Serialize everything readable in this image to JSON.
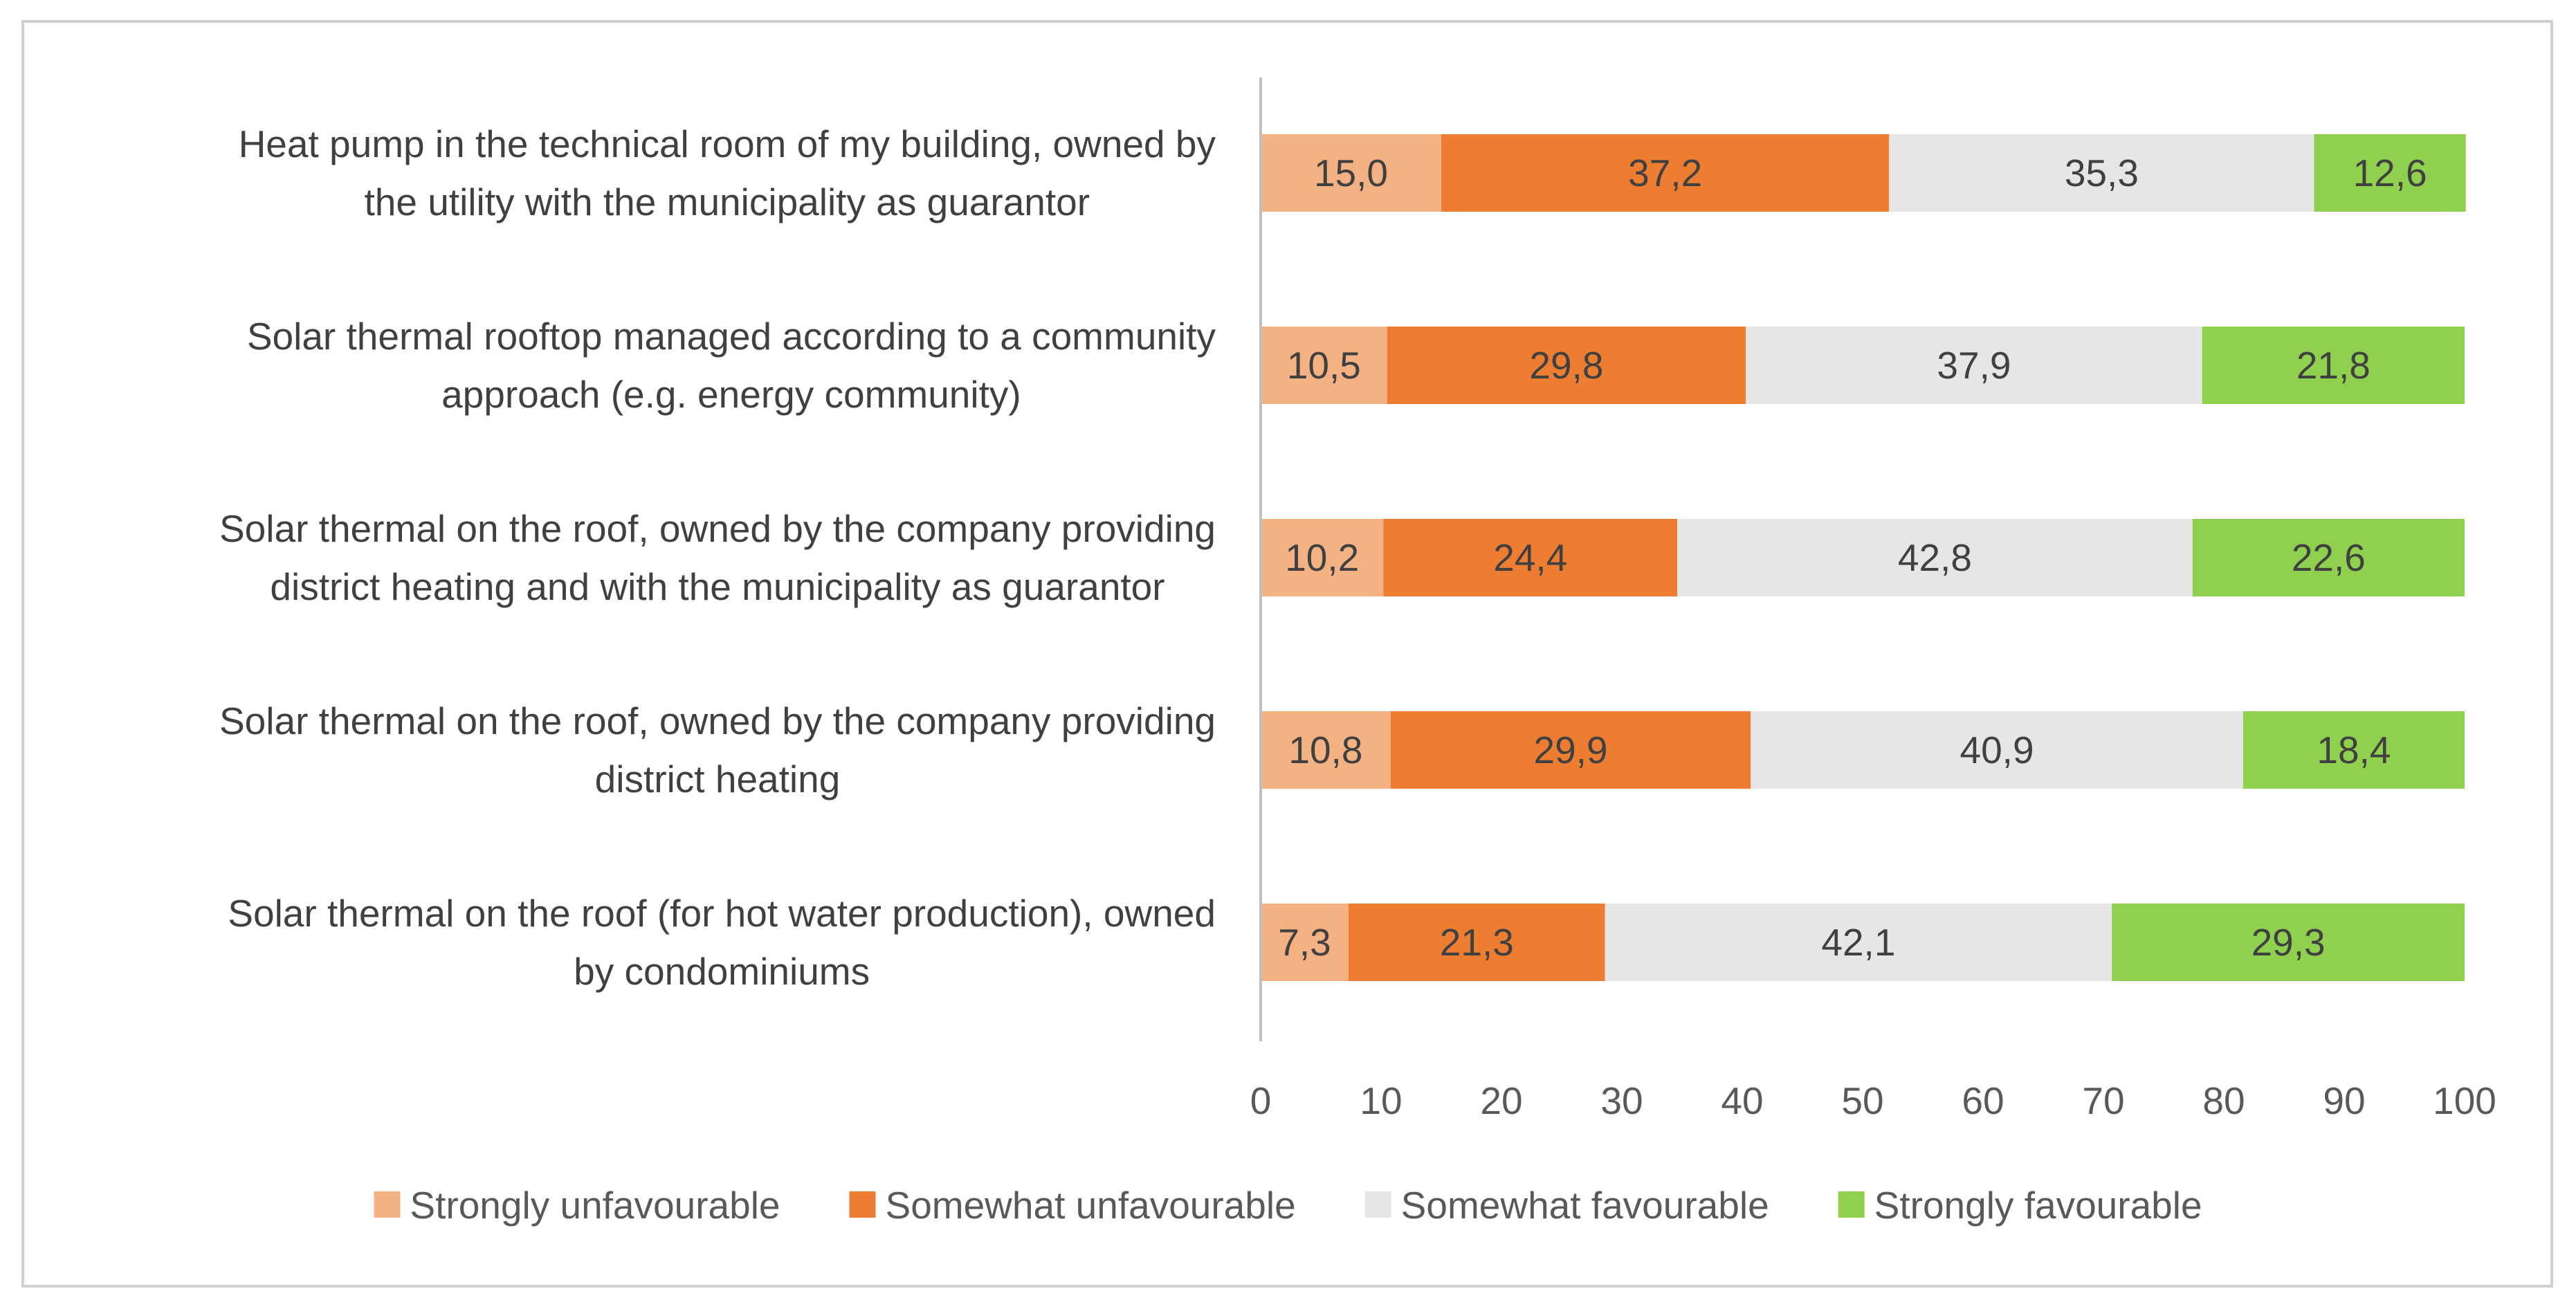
{
  "chart_data": {
    "type": "bar",
    "orientation": "horizontal",
    "stacked": true,
    "title": "",
    "xlabel": "",
    "ylabel": "",
    "xlim": [
      0,
      100
    ],
    "xticks": [
      "0",
      "10",
      "20",
      "30",
      "40",
      "50",
      "60",
      "70",
      "80",
      "90",
      "100"
    ],
    "grid": false,
    "legend_position": "bottom",
    "categories": [
      [
        "Heat pump in the technical room of my building, owned by",
        "the utility with the municipality as guarantor"
      ],
      [
        "Solar thermal rooftop managed according to a community",
        "approach (e.g. energy community)"
      ],
      [
        "Solar thermal on the roof, owned by the company providing",
        "district heating and with the municipality as guarantor"
      ],
      [
        "Solar thermal on the roof, owned by the company providing",
        "district heating"
      ],
      [
        "Solar thermal on the roof (for hot water production), owned",
        "by condominiums"
      ]
    ],
    "series": [
      {
        "name": "Strongly unfavourable",
        "color": "#f4b183",
        "values": [
          15.0,
          10.5,
          10.2,
          10.8,
          7.3
        ],
        "labels": [
          "15,0",
          "10,5",
          "10,2",
          "10,8",
          "7,3"
        ]
      },
      {
        "name": "Somewhat unfavourable",
        "color": "#ed7d31",
        "values": [
          37.2,
          29.8,
          24.4,
          29.9,
          21.3
        ],
        "labels": [
          "37,2",
          "29,8",
          "24,4",
          "29,9",
          "21,3"
        ]
      },
      {
        "name": "Somewhat favourable",
        "color": "#e7e6e6",
        "values": [
          35.3,
          37.9,
          42.8,
          40.9,
          42.1
        ],
        "labels": [
          "35,3",
          "37,9",
          "42,8",
          "40,9",
          "42,1"
        ]
      },
      {
        "name": "Strongly favourable",
        "color": "#8fd14f",
        "values": [
          12.6,
          21.8,
          22.6,
          18.4,
          29.3
        ],
        "labels": [
          "12,6",
          "21,8",
          "22,6",
          "18,4",
          "29,3"
        ]
      }
    ]
  }
}
